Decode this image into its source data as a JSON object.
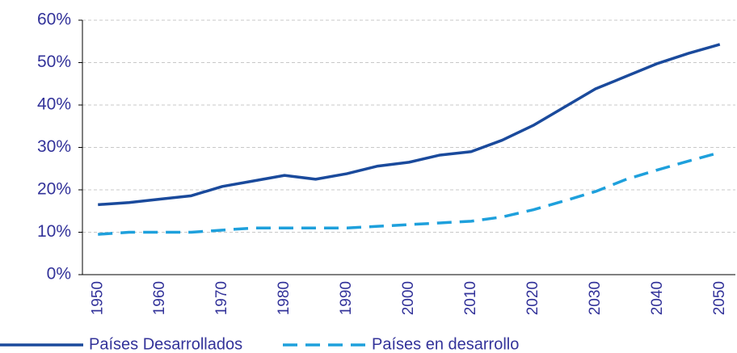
{
  "chart_data": {
    "type": "line",
    "categories": [
      "1950",
      null,
      "1960",
      null,
      "1970",
      null,
      "1980",
      null,
      "1990",
      null,
      "2000",
      null,
      "2010",
      null,
      "2020",
      null,
      "2030",
      null,
      "2040",
      null,
      "2050"
    ],
    "series": [
      {
        "name": "Países Desarrollados",
        "color": "#1a4a9c",
        "dash": false,
        "values": [
          16.5,
          17,
          17.8,
          18.6,
          20.8,
          22.1,
          23.4,
          22.5,
          23.8,
          25.6,
          26.5,
          28.2,
          29,
          31.7,
          35.2,
          39.5,
          43.8,
          46.8,
          49.8,
          52.2,
          54.3
        ]
      },
      {
        "name": "Países en desarrollo",
        "color": "#1ea0dc",
        "dash": true,
        "values": [
          9.5,
          10,
          10,
          10,
          10.5,
          11,
          11,
          11,
          11,
          11.4,
          11.8,
          12.2,
          12.6,
          13.6,
          15.3,
          17.4,
          19.6,
          22.5,
          24.7,
          26.8,
          28.8
        ]
      }
    ],
    "ylim": [
      0,
      60
    ],
    "yticks": [
      {
        "value": 0,
        "label": "0%"
      },
      {
        "value": 10,
        "label": "10%"
      },
      {
        "value": 20,
        "label": "20%"
      },
      {
        "value": 30,
        "label": "30%"
      },
      {
        "value": 40,
        "label": "40%"
      },
      {
        "value": 50,
        "label": "50%"
      },
      {
        "value": 60,
        "label": "60%"
      }
    ],
    "grid": true,
    "legend": "bottom"
  }
}
